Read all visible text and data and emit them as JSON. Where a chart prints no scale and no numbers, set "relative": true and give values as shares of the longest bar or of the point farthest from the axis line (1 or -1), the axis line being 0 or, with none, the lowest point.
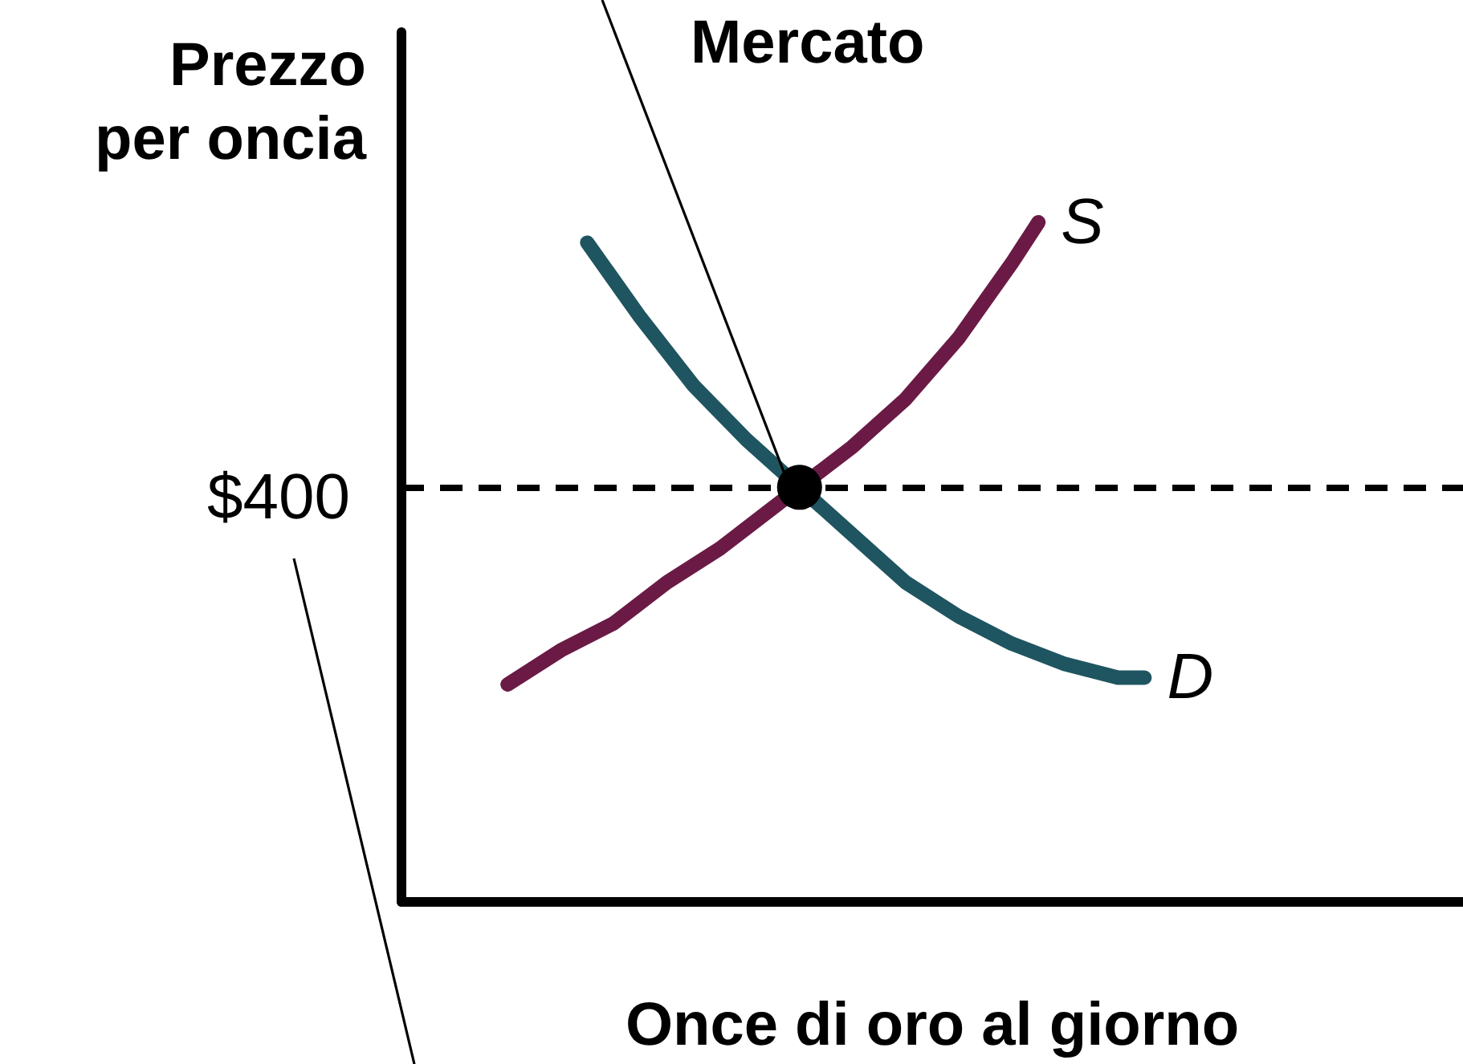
{
  "chart_data": {
    "type": "line",
    "relative": true,
    "xlabel": "Once di oro al giorno",
    "ylabel": "Prezzo\nper oncia",
    "categories": [
      null,
      null,
      null,
      null,
      null,
      null,
      null,
      null,
      null,
      null,
      null,
      null,
      null,
      null,
      null,
      null,
      null,
      null,
      null,
      null,
      null,
      null,
      null,
      null,
      null,
      null,
      null,
      null,
      null,
      null,
      null,
      null,
      null,
      null,
      null,
      null,
      null,
      null,
      null,
      null,
      null
    ],
    "series": [
      {
        "name": "S",
        "color": "#6b1a45",
        "values": [
          null,
          null,
          null,
          null,
          0.32,
          null,
          0.37,
          null,
          0.41,
          null,
          0.47,
          null,
          0.52,
          null,
          0.58,
          0.61,
          null,
          0.67,
          null,
          0.74,
          null,
          0.83,
          null,
          0.94,
          1.0,
          null,
          null,
          null,
          null,
          null,
          null,
          null,
          null,
          null,
          null,
          null,
          null,
          null,
          null,
          null,
          null
        ]
      },
      {
        "name": "D",
        "color": "#1f5560",
        "values": [
          null,
          null,
          null,
          null,
          null,
          null,
          null,
          0.97,
          null,
          0.86,
          null,
          0.76,
          null,
          0.68,
          null,
          0.61,
          null,
          0.54,
          null,
          0.47,
          null,
          0.42,
          null,
          0.38,
          null,
          0.35,
          null,
          0.33,
          0.33,
          null,
          null,
          null,
          null,
          null,
          null,
          null,
          null,
          null,
          null,
          null,
          null
        ]
      }
    ],
    "ref_lines": [
      {
        "axis": "y",
        "value": 0.61,
        "color": "#000000",
        "line_style": "dashed"
      }
    ],
    "annotations": [
      "Mercato",
      "$400"
    ],
    "legend": false,
    "grid": false
  }
}
